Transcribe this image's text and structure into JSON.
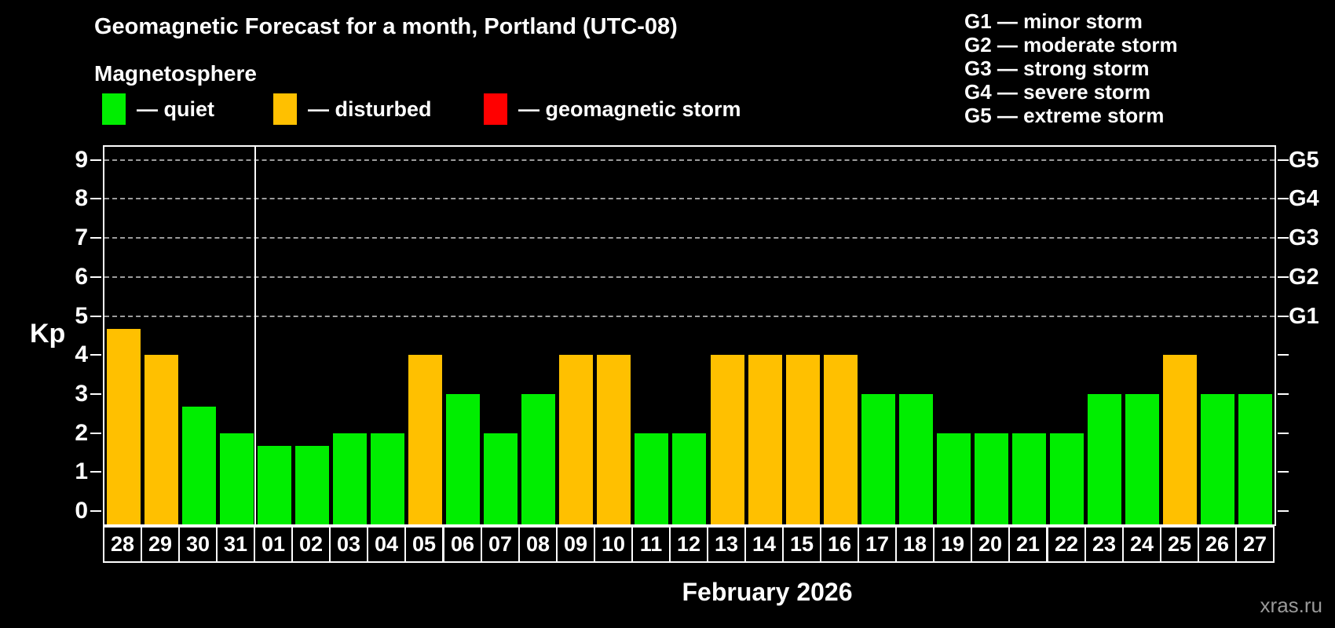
{
  "title": "Geomagnetic Forecast for a month, Portland (UTC-08)",
  "subtitle": "Magnetosphere",
  "legend": {
    "items": [
      {
        "key": "quiet",
        "label": "— quiet",
        "color": "#00EE00"
      },
      {
        "key": "disturbed",
        "label": "— disturbed",
        "color": "#FFC000"
      },
      {
        "key": "storm",
        "label": "— geomagnetic storm",
        "color": "#FF0000"
      }
    ]
  },
  "gscale_legend": [
    "G1 — minor storm",
    "G2 — moderate storm",
    "G3 — strong storm",
    "G4 — severe storm",
    "G5 — extreme storm"
  ],
  "axis": {
    "kp_label": "Kp",
    "kp_ticks": [
      0,
      1,
      2,
      3,
      4,
      5,
      6,
      7,
      8,
      9
    ],
    "g_labels": [
      {
        "label": "G5",
        "kp": 9
      },
      {
        "label": "G4",
        "kp": 8
      },
      {
        "label": "G3",
        "kp": 7
      },
      {
        "label": "G2",
        "kp": 6
      },
      {
        "label": "G1",
        "kp": 5
      }
    ]
  },
  "xlabel": "February 2026",
  "watermark": "xras.ru",
  "colors": {
    "background": "#000000",
    "axis": "#FFFFFF",
    "grid": "#9C9C9C",
    "text": "#FFFFFF",
    "watermark": "#999999",
    "quiet": "#00EE00",
    "disturbed": "#FFC000",
    "storm": "#FF0000"
  },
  "chart_data": {
    "type": "bar",
    "title": "Geomagnetic Forecast for a month, Portland (UTC-08)",
    "subtitle": "Magnetosphere",
    "xlabel": "February 2026",
    "ylabel": "Kp",
    "y2labels": [
      "G1",
      "G2",
      "G3",
      "G4",
      "G5"
    ],
    "ylim": [
      0,
      9.4
    ],
    "grid_levels": [
      5,
      6,
      7,
      8,
      9
    ],
    "grid": "dashed-horizontal-only",
    "legend_position": "top",
    "categories": [
      "28",
      "29",
      "30",
      "31",
      "01",
      "02",
      "03",
      "04",
      "05",
      "06",
      "07",
      "08",
      "09",
      "10",
      "11",
      "12",
      "13",
      "14",
      "15",
      "16",
      "17",
      "18",
      "19",
      "20",
      "21",
      "22",
      "23",
      "24",
      "25",
      "26",
      "27"
    ],
    "values": [
      4.67,
      4,
      2.67,
      2,
      1.67,
      1.67,
      2,
      2,
      4,
      3,
      2,
      3,
      4,
      4,
      2,
      2,
      4,
      4,
      4,
      4,
      3,
      3,
      2,
      2,
      2,
      2,
      3,
      3,
      4,
      3,
      3
    ],
    "month_boundary_after_category": "31",
    "color_rule": {
      "storm_min_kp": 5,
      "disturbed_min_kp": 4,
      "quiet_below_kp": 4
    }
  }
}
